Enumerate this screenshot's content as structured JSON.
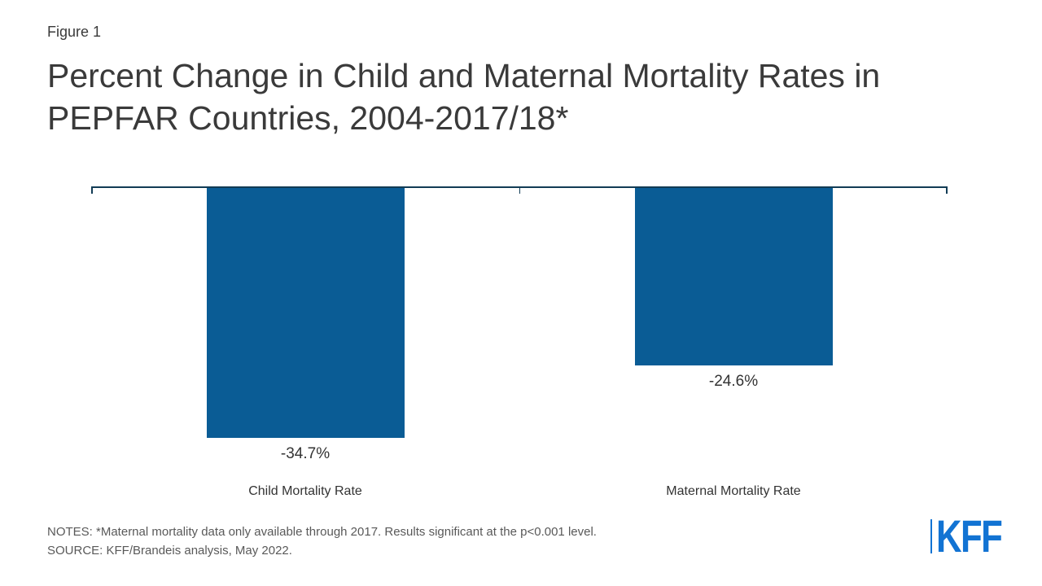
{
  "header": {
    "figure_label": "Figure 1",
    "title": "Percent Change in Child and Maternal Mortality Rates in PEPFAR Countries, 2004-2017/18*"
  },
  "chart_data": {
    "type": "bar",
    "title": "Percent Change in Child and Maternal Mortality Rates in PEPFAR Countries, 2004-2017/18*",
    "categories": [
      "Child Mortality Rate",
      "Maternal Mortality Rate"
    ],
    "values": [
      -34.7,
      -24.6
    ],
    "value_labels": [
      "-34.7%",
      "-24.6%"
    ],
    "xlabel": "",
    "ylabel": "",
    "ylim": [
      -40,
      0
    ],
    "baseline": 0,
    "grid": false,
    "legend": false,
    "bar_color": "#0a5c95",
    "axis_color": "#123c55"
  },
  "footer": {
    "notes": "NOTES: *Maternal mortality data only available through 2017. Results significant at the p<0.001 level.",
    "source": "SOURCE: KFF/Brandeis analysis, May 2022.",
    "logo_text": "KFF"
  },
  "colors": {
    "background": "#ffffff",
    "bar": "#0a5c95",
    "axis": "#123c55",
    "title_text": "#3a3a3a",
    "label_text": "#333333",
    "notes_text": "#595959",
    "logo_blue": "#1273d3"
  }
}
